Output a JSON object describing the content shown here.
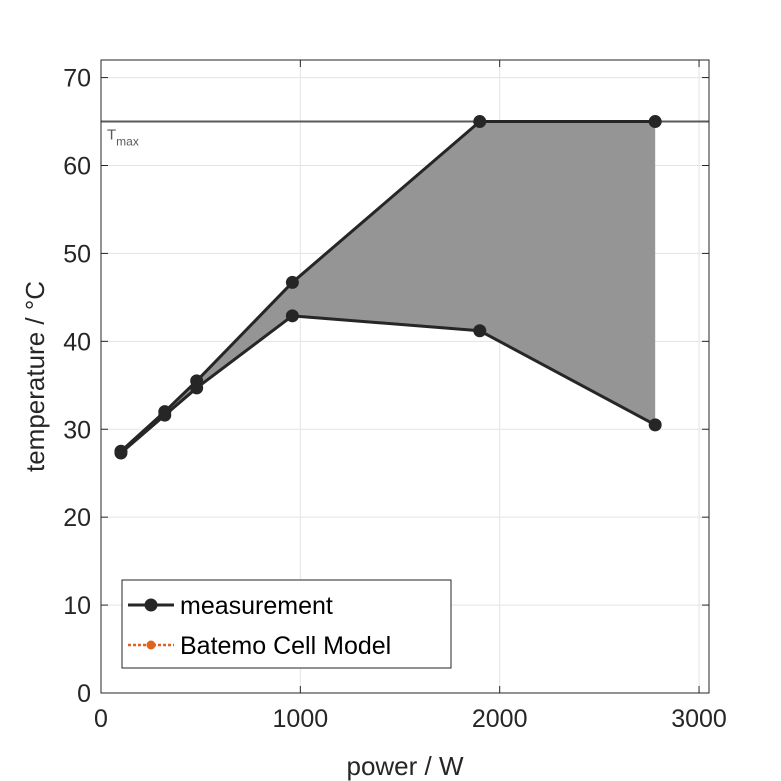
{
  "chart_data": {
    "type": "line",
    "xlabel": "power / W",
    "ylabel": "temperature / °C",
    "xlim": [
      0,
      3050
    ],
    "ylim": [
      0,
      72
    ],
    "xticks": [
      0,
      1000,
      2000,
      3000
    ],
    "yticks": [
      0,
      10,
      20,
      30,
      40,
      50,
      60,
      70
    ],
    "grid": true,
    "legend_position": "bottom-left",
    "reference_line": {
      "y": 65,
      "label_main": "T",
      "label_sub": "max",
      "color": "#595959"
    },
    "band": {
      "color": "#959595"
    },
    "series": [
      {
        "name": "measurement",
        "color": "#262626",
        "branches": [
          {
            "x": [
              100,
              320,
              480,
              960,
              1900,
              2780
            ],
            "y": [
              27.5,
              32.0,
              35.5,
              46.7,
              65.0,
              65.0
            ]
          },
          {
            "x": [
              100,
              320,
              480,
              960,
              1900,
              2780
            ],
            "y": [
              27.3,
              31.6,
              34.7,
              42.9,
              41.2,
              30.5
            ]
          }
        ]
      },
      {
        "name": "Batemo Cell Model",
        "color": "#e2641c",
        "dashed": true,
        "branches": []
      }
    ]
  }
}
